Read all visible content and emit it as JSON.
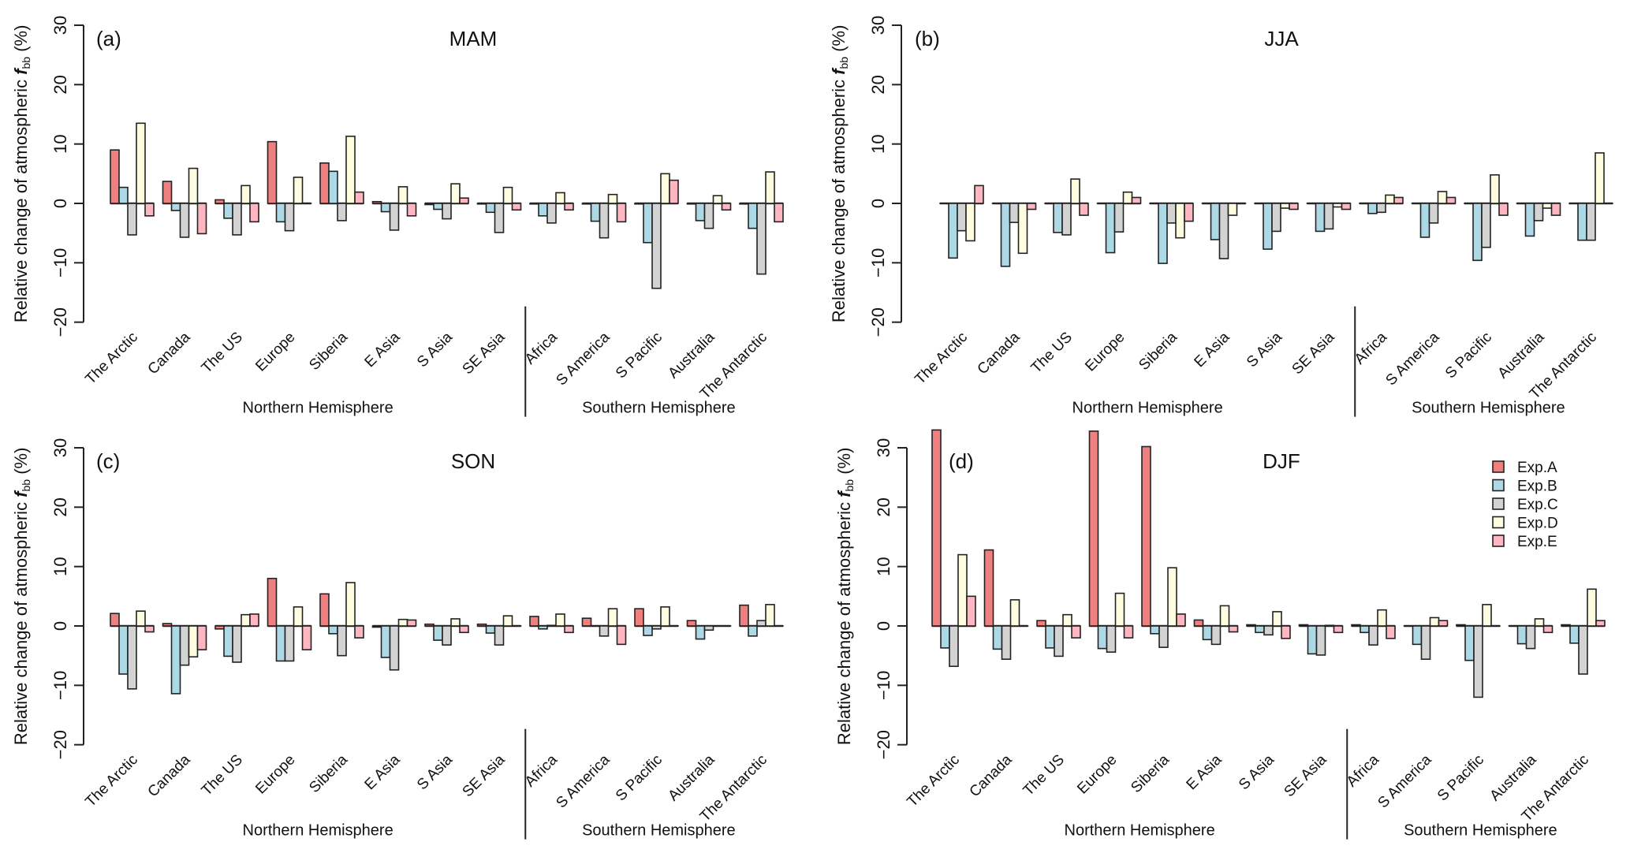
{
  "chart_data": [
    {
      "type": "bar",
      "panel": "(a)",
      "title": "MAM",
      "ylabel": "Relative change of atmospheric f_bb (%)",
      "ylim": [
        -20,
        30
      ],
      "yticks": [
        -20,
        -10,
        0,
        10,
        20,
        30
      ],
      "categories": [
        "The Arctic",
        "Canada",
        "The US",
        "Europe",
        "Siberia",
        "E  Asia",
        "S  Asia",
        "SE  Asia",
        "Africa",
        "S  America",
        "S  Pacific",
        "Australia",
        "The Antarctic"
      ],
      "groups": [
        {
          "label": "Northern Hemisphere",
          "count": 8
        },
        {
          "label": "Southern Hemisphere",
          "count": 5
        }
      ],
      "series": [
        {
          "name": "Exp.A",
          "values": [
            9.0,
            3.7,
            0.6,
            10.4,
            6.8,
            0.3,
            -0.2,
            -0.1,
            -0.1,
            -0.1,
            -0.1,
            -0.1,
            -0.1
          ]
        },
        {
          "name": "Exp.B",
          "values": [
            2.7,
            -1.2,
            -2.5,
            -3.1,
            5.4,
            -1.4,
            -1.0,
            -1.5,
            -2.1,
            -3.0,
            -6.6,
            -2.9,
            -4.2
          ]
        },
        {
          "name": "Exp.C",
          "values": [
            -5.3,
            -5.7,
            -5.3,
            -4.6,
            -2.9,
            -4.5,
            -2.6,
            -4.9,
            -3.3,
            -5.8,
            -14.3,
            -4.2,
            -11.9
          ]
        },
        {
          "name": "Exp.D",
          "values": [
            13.5,
            5.9,
            3.0,
            4.4,
            11.3,
            2.8,
            3.3,
            2.7,
            1.8,
            1.5,
            5.0,
            1.3,
            5.3
          ]
        },
        {
          "name": "Exp.E",
          "values": [
            -2.1,
            -5.1,
            -3.1,
            0.0,
            1.9,
            -2.1,
            0.9,
            -1.1,
            -1.1,
            -3.1,
            3.9,
            -1.1,
            -3.1
          ]
        }
      ],
      "grid": false
    },
    {
      "type": "bar",
      "panel": "(b)",
      "title": "JJA",
      "ylabel": "Relative change of atmospheric f_bb (%)",
      "ylim": [
        -20,
        30
      ],
      "yticks": [
        -20,
        -10,
        0,
        10,
        20,
        30
      ],
      "categories": [
        "The Arctic",
        "Canada",
        "The US",
        "Europe",
        "Siberia",
        "E  Asia",
        "S  Asia",
        "SE  Asia",
        "Africa",
        "S  America",
        "S  Pacific",
        "Australia",
        "The Antarctic"
      ],
      "groups": [
        {
          "label": "Northern Hemisphere",
          "count": 8
        },
        {
          "label": "Southern Hemisphere",
          "count": 5
        }
      ],
      "series": [
        {
          "name": "Exp.A",
          "values": [
            0.0,
            0.0,
            0.0,
            0.0,
            0.0,
            0.0,
            0.0,
            0.0,
            0.0,
            0.0,
            0.0,
            0.0,
            0.0
          ]
        },
        {
          "name": "Exp.B",
          "values": [
            -9.2,
            -10.6,
            -4.9,
            -8.3,
            -10.1,
            -6.1,
            -7.7,
            -4.7,
            -1.7,
            -5.7,
            -9.6,
            -5.5,
            -6.2
          ]
        },
        {
          "name": "Exp.C",
          "values": [
            -4.6,
            -3.2,
            -5.3,
            -4.8,
            -3.3,
            -9.3,
            -4.7,
            -4.3,
            -1.5,
            -3.3,
            -7.4,
            -2.9,
            -6.2
          ]
        },
        {
          "name": "Exp.D",
          "values": [
            -6.3,
            -8.4,
            4.1,
            1.9,
            -5.8,
            -2.0,
            -0.8,
            -0.6,
            1.4,
            2.0,
            4.8,
            -0.8,
            8.5
          ]
        },
        {
          "name": "Exp.E",
          "values": [
            3.0,
            -1.0,
            -2.0,
            1.0,
            -3.0,
            0.0,
            -1.0,
            -1.0,
            1.0,
            1.0,
            -2.0,
            -2.0,
            0.0
          ]
        }
      ],
      "grid": false
    },
    {
      "type": "bar",
      "panel": "(c)",
      "title": "SON",
      "ylabel": "Relative change of atmospheric f_bb (%)",
      "ylim": [
        -20,
        30
      ],
      "yticks": [
        -20,
        -10,
        0,
        10,
        20,
        30
      ],
      "categories": [
        "The Arctic",
        "Canada",
        "The US",
        "Europe",
        "Siberia",
        "E  Asia",
        "S  Asia",
        "SE  Asia",
        "Africa",
        "S  America",
        "S  Pacific",
        "Australia",
        "The Antarctic"
      ],
      "groups": [
        {
          "label": "Northern Hemisphere",
          "count": 8
        },
        {
          "label": "Southern Hemisphere",
          "count": 5
        }
      ],
      "series": [
        {
          "name": "Exp.A",
          "values": [
            2.1,
            0.4,
            -0.5,
            8.0,
            5.4,
            -0.2,
            0.3,
            0.3,
            1.6,
            1.3,
            2.9,
            0.9,
            3.5
          ]
        },
        {
          "name": "Exp.B",
          "values": [
            -8.1,
            -11.4,
            -5.1,
            -5.9,
            -1.3,
            -5.3,
            -2.4,
            -1.2,
            -0.5,
            0.0,
            -1.6,
            -2.2,
            -1.7
          ]
        },
        {
          "name": "Exp.C",
          "values": [
            -10.6,
            -6.6,
            -6.1,
            -5.9,
            -5.0,
            -7.4,
            -3.2,
            -3.2,
            0.1,
            -1.7,
            -0.5,
            -0.7,
            0.9
          ]
        },
        {
          "name": "Exp.D",
          "values": [
            2.5,
            -5.2,
            1.9,
            3.2,
            7.3,
            1.1,
            1.2,
            1.7,
            2.0,
            2.9,
            3.2,
            0.0,
            3.6
          ]
        },
        {
          "name": "Exp.E",
          "values": [
            -1.0,
            -4.0,
            2.0,
            -4.0,
            -2.0,
            1.0,
            -1.1,
            0.0,
            -1.1,
            -3.1,
            0.0,
            0.0,
            0.0
          ]
        }
      ],
      "grid": false
    },
    {
      "type": "bar",
      "panel": "(d)",
      "title": "DJF",
      "ylabel": "Relative change of atmospheric f_bb (%)",
      "ylim": [
        -20,
        30
      ],
      "yticks": [
        -20,
        -10,
        0,
        10,
        20,
        30
      ],
      "categories": [
        "The Arctic",
        "Canada",
        "The US",
        "Europe",
        "Siberia",
        "E  Asia",
        "S  Asia",
        "SE  Asia",
        "Africa",
        "S  America",
        "S  Pacific",
        "Australia",
        "The Antarctic"
      ],
      "groups": [
        {
          "label": "Northern Hemisphere",
          "count": 8
        },
        {
          "label": "Southern Hemisphere",
          "count": 5
        }
      ],
      "series": [
        {
          "name": "Exp.A",
          "values": [
            33.0,
            12.8,
            0.9,
            32.8,
            30.2,
            1.0,
            0.2,
            0.2,
            0.2,
            0.0,
            0.2,
            0.0,
            0.2
          ]
        },
        {
          "name": "Exp.B",
          "values": [
            -3.7,
            -3.9,
            -3.7,
            -3.8,
            -1.3,
            -2.3,
            -1.1,
            -4.7,
            -1.1,
            -3.1,
            -5.8,
            -3.0,
            -2.9
          ]
        },
        {
          "name": "Exp.C",
          "values": [
            -6.8,
            -5.6,
            -5.1,
            -4.4,
            -3.6,
            -3.1,
            -1.5,
            -4.9,
            -3.2,
            -5.6,
            -12.0,
            -3.8,
            -8.1
          ]
        },
        {
          "name": "Exp.D",
          "values": [
            12.0,
            4.4,
            1.9,
            5.5,
            9.8,
            3.4,
            2.4,
            0.1,
            2.7,
            1.4,
            3.6,
            1.2,
            6.2
          ]
        },
        {
          "name": "Exp.E",
          "values": [
            5.0,
            0.0,
            -2.0,
            -2.0,
            2.0,
            -1.0,
            -2.1,
            -1.1,
            -2.1,
            0.9,
            0.0,
            -1.1,
            0.9
          ]
        }
      ],
      "legend": {
        "placement": "top-right",
        "entries": [
          "Exp.A",
          "Exp.B",
          "Exp.C",
          "Exp.D",
          "Exp.E"
        ]
      },
      "grid": false
    }
  ],
  "series_colors": {
    "Exp.A": "#f08080",
    "Exp.B": "#add8e6",
    "Exp.C": "#d3d3d3",
    "Exp.D": "#fffde0",
    "Exp.E": "#ffb6c1"
  },
  "ylabel_parts": {
    "prefix": "Relative change of atmospheric ",
    "var": "f",
    "sub": "bb",
    "suffix": " (%)"
  }
}
